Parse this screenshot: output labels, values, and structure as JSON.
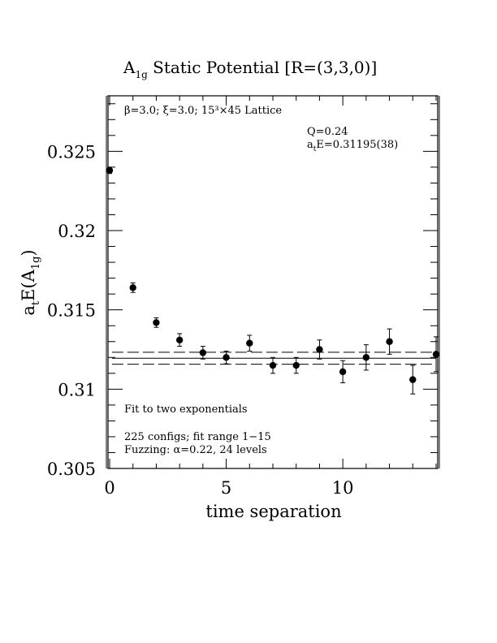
{
  "chart_data": {
    "type": "scatter",
    "title": "A1g Static Potential [R=(3,3,0)]",
    "title_main": "A",
    "title_sub": "1g",
    "title_rest": " Static Potential [R=(3,3,0)]",
    "xlabel": "time separation",
    "ylabel": "atE(A1g)",
    "ylabel_parts": {
      "a": "a",
      "t": "t",
      "E": "E(A",
      "sub": "1g",
      "close": ")"
    },
    "xlim": [
      0,
      14
    ],
    "ylim": [
      0.305,
      0.3285
    ],
    "x_ticks": [
      0,
      5,
      10
    ],
    "x_tick_labels": [
      "0",
      "5",
      "10"
    ],
    "y_ticks": [
      0.305,
      0.31,
      0.315,
      0.32,
      0.325
    ],
    "y_tick_labels": [
      "0.305",
      "0.31",
      "0.315",
      "0.32",
      "0.325"
    ],
    "series": [
      {
        "x": [
          0,
          1,
          2,
          3,
          4,
          5,
          6,
          7,
          8,
          9,
          10,
          11,
          12,
          13,
          14
        ],
        "y": [
          0.3238,
          0.3164,
          0.3142,
          0.3131,
          0.3123,
          0.312,
          0.3129,
          0.3115,
          0.3115,
          0.3125,
          0.3111,
          0.312,
          0.313,
          0.3106,
          0.3122
        ],
        "err": [
          0.0002,
          0.0003,
          0.0003,
          0.0004,
          0.0004,
          0.0004,
          0.0005,
          0.0005,
          0.0005,
          0.0006,
          0.0007,
          0.0008,
          0.0008,
          0.0009,
          0.0011
        ]
      }
    ],
    "fit": {
      "central": 0.31195,
      "error": 0.00038,
      "x_start": 0.1,
      "x_end": 14
    },
    "annotations": {
      "lattice_info": "β=3.0; ξ=3.0; 15³×45 Lattice",
      "q_value": "Q=0.24",
      "energy_prefix": "a",
      "energy_sub": "t",
      "energy_rest": "E=0.31195(38)",
      "fit_type": "Fit to two exponentials",
      "configs": "225 configs; fit range 1−15",
      "fuzzing": "Fuzzing: α=0.22, 24 levels"
    },
    "grid": false,
    "legend": "none"
  }
}
